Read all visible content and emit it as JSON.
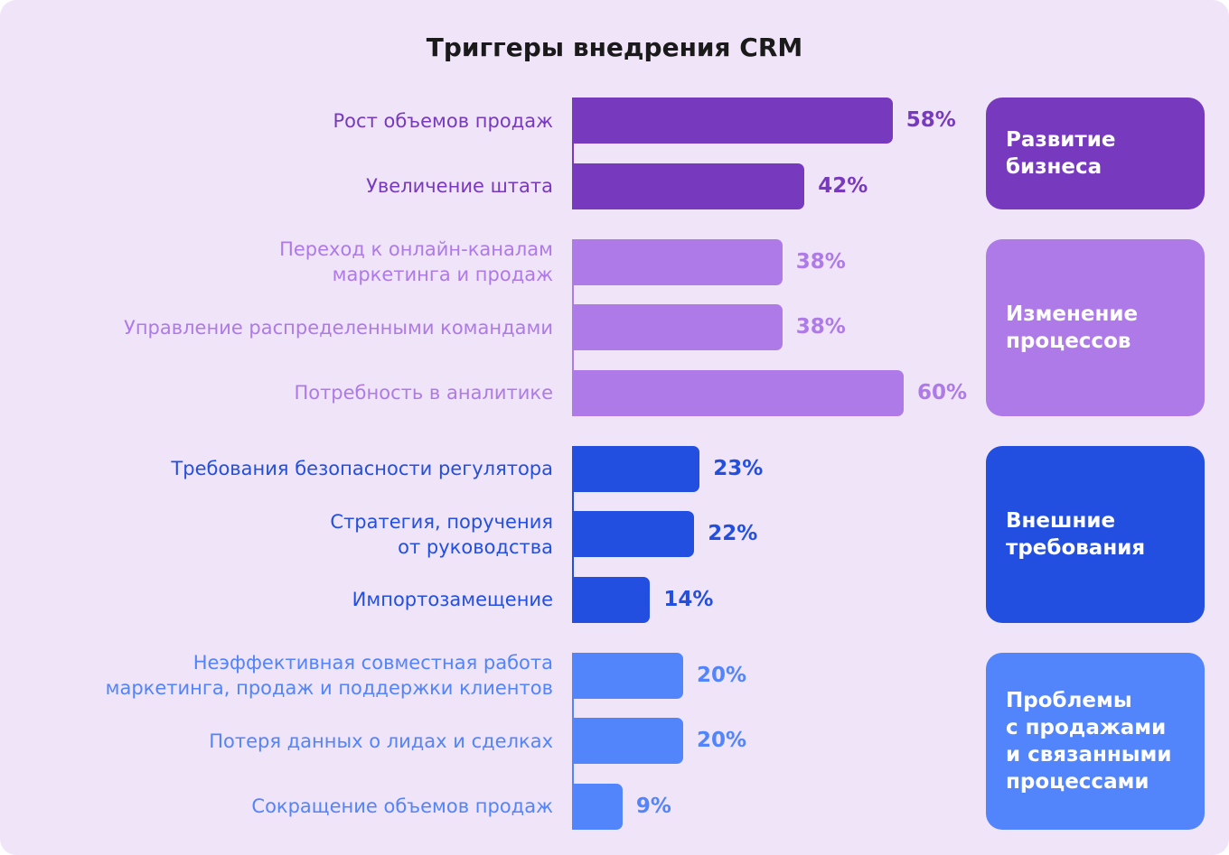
{
  "chart_data": {
    "type": "bar",
    "orientation": "horizontal",
    "title": "Триггеры внедрения CRM",
    "series": [
      {
        "name": "Развитие\nбизнеса",
        "color": "#773abf",
        "categories": [
          "Рост объемов продаж",
          "Увеличение штата"
        ],
        "values": [
          58,
          42
        ],
        "value_labels": [
          "58%",
          "42%"
        ]
      },
      {
        "name": "Изменение\nпроцессов",
        "color": "#ae7ae8",
        "categories": [
          "Переход к онлайн-каналам\nмаркетинга и продаж",
          "Управление распределенными командами",
          "Потребность в аналитике"
        ],
        "values": [
          38,
          38,
          60
        ],
        "value_labels": [
          "38%",
          "38%",
          "60%"
        ]
      },
      {
        "name": "Внешние\nтребования",
        "color": "#234fe0",
        "categories": [
          "Требования безопасности регулятора",
          "Стратегия, поручения\nот руководства",
          "Импортозамещение"
        ],
        "values": [
          23,
          22,
          14
        ],
        "value_labels": [
          "23%",
          "22%",
          "14%"
        ]
      },
      {
        "name": "Проблемы\nс продажами\nи связанными\nпроцессами",
        "color": "#5284fb",
        "categories": [
          "Неэффективная совместная работа\nмаркетинга, продаж и поддержки клиентов",
          "Потеря данных о лидах и сделках",
          "Сокращение объемов продаж"
        ],
        "values": [
          20,
          20,
          9
        ],
        "value_labels": [
          "20%",
          "20%",
          "9%"
        ]
      }
    ]
  }
}
